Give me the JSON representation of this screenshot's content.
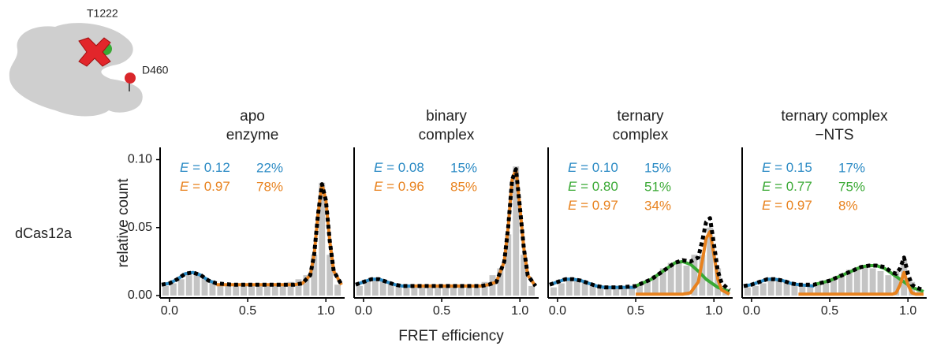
{
  "diagram": {
    "labels": [
      "T1222",
      "D460"
    ]
  },
  "row_label": "dCas12a",
  "xlabel": "FRET efficiency",
  "chart_data": [
    {
      "type": "histogram",
      "title": [
        "apo",
        "enzyme"
      ],
      "ylabel": "relative count",
      "xlim": [
        -0.06,
        1.12
      ],
      "ylim": [
        0,
        0.109
      ],
      "xticks": [
        {
          "value": 0,
          "label": "0.0"
        },
        {
          "value": 0.5,
          "label": "0.5"
        },
        {
          "value": 1,
          "label": "1.0"
        }
      ],
      "yticks": [
        {
          "value": 0,
          "label": "0.00"
        },
        {
          "value": 0.05,
          "label": "0.05"
        },
        {
          "value": 0.1,
          "label": "0.10"
        }
      ],
      "annotations": [
        {
          "text": "E = 0.12",
          "share": "22%",
          "color": "#2a8ac4"
        },
        {
          "text": "E = 0.97",
          "share": "78%",
          "color": "#e8821e"
        }
      ],
      "bar_color": "#c4c4c4",
      "bins": [
        -0.05,
        0,
        0.05,
        0.1,
        0.15,
        0.2,
        0.25,
        0.3,
        0.35,
        0.4,
        0.45,
        0.5,
        0.55,
        0.6,
        0.65,
        0.7,
        0.75,
        0.8,
        0.85,
        0.9,
        0.95,
        1.0,
        1.05,
        1.1
      ],
      "counts": [
        0.007,
        0.009,
        0.012,
        0.015,
        0.016,
        0.013,
        0.01,
        0.008,
        0.008,
        0.007,
        0.007,
        0.007,
        0.008,
        0.008,
        0.008,
        0.009,
        0.01,
        0.012,
        0.015,
        0.03,
        0.083,
        0.03,
        0.008
      ],
      "x": [
        -0.05,
        0,
        0.05,
        0.1,
        0.15,
        0.2,
        0.25,
        0.3,
        0.4,
        0.5,
        0.6,
        0.7,
        0.75,
        0.8,
        0.85,
        0.9,
        0.925,
        0.95,
        0.975,
        1.0,
        1.025,
        1.05,
        1.1
      ],
      "series": [
        {
          "color": "#2a8ac4",
          "values": [
            0.008,
            0.009,
            0.012,
            0.016,
            0.017,
            0.015,
            0.011,
            0.009,
            null,
            null,
            null,
            null,
            null,
            null,
            null,
            null,
            null,
            null,
            null,
            null,
            null,
            null,
            null
          ]
        },
        {
          "color": "#e8821e",
          "values": [
            null,
            null,
            null,
            null,
            null,
            null,
            null,
            0.008,
            0.008,
            0.008,
            0.008,
            0.008,
            0.008,
            0.008,
            0.009,
            0.015,
            0.03,
            0.06,
            0.082,
            0.07,
            0.04,
            0.018,
            0.008
          ]
        },
        {
          "color": "#000000",
          "style": "dashed",
          "values": [
            0.008,
            0.009,
            0.012,
            0.016,
            0.017,
            0.015,
            0.011,
            0.009,
            0.008,
            0.008,
            0.008,
            0.008,
            0.008,
            0.008,
            0.009,
            0.015,
            0.03,
            0.06,
            0.082,
            0.07,
            0.04,
            0.018,
            0.008
          ]
        }
      ]
    },
    {
      "type": "histogram",
      "title": [
        "binary",
        "complex"
      ],
      "xlim": [
        -0.06,
        1.12
      ],
      "ylim": [
        0,
        0.109
      ],
      "xticks": [
        {
          "value": 0,
          "label": "0.0"
        },
        {
          "value": 0.5,
          "label": "0.5"
        },
        {
          "value": 1,
          "label": "1.0"
        }
      ],
      "annotations": [
        {
          "text": "E = 0.08",
          "share": "15%",
          "color": "#2a8ac4"
        },
        {
          "text": "E = 0.96",
          "share": "85%",
          "color": "#e8821e"
        }
      ],
      "bar_color": "#c4c4c4",
      "bins": [
        -0.05,
        0,
        0.05,
        0.1,
        0.15,
        0.2,
        0.25,
        0.3,
        0.35,
        0.4,
        0.45,
        0.5,
        0.55,
        0.6,
        0.65,
        0.7,
        0.75,
        0.8,
        0.85,
        0.9,
        0.95,
        1.0,
        1.05,
        1.1
      ],
      "counts": [
        0.007,
        0.01,
        0.012,
        0.012,
        0.009,
        0.007,
        0.006,
        0.006,
        0.006,
        0.006,
        0.006,
        0.006,
        0.007,
        0.007,
        0.007,
        0.008,
        0.01,
        0.015,
        0.02,
        0.045,
        0.095,
        0.03,
        0.007
      ],
      "x": [
        -0.05,
        0,
        0.05,
        0.1,
        0.15,
        0.2,
        0.25,
        0.3,
        0.4,
        0.5,
        0.6,
        0.7,
        0.75,
        0.8,
        0.85,
        0.9,
        0.925,
        0.95,
        0.975,
        1.0,
        1.025,
        1.05,
        1.1
      ],
      "series": [
        {
          "color": "#2a8ac4",
          "values": [
            0.008,
            0.01,
            0.012,
            0.012,
            0.01,
            0.008,
            0.007,
            0.007,
            null,
            null,
            null,
            null,
            null,
            null,
            null,
            null,
            null,
            null,
            null,
            null,
            null,
            null,
            null
          ]
        },
        {
          "color": "#e8821e",
          "values": [
            null,
            null,
            null,
            null,
            null,
            null,
            null,
            0.007,
            0.007,
            0.007,
            0.007,
            0.007,
            0.007,
            0.008,
            0.01,
            0.025,
            0.05,
            0.085,
            0.093,
            0.065,
            0.035,
            0.015,
            0.007
          ]
        },
        {
          "color": "#000000",
          "style": "dashed",
          "values": [
            0.008,
            0.01,
            0.012,
            0.012,
            0.01,
            0.008,
            0.007,
            0.007,
            0.007,
            0.007,
            0.007,
            0.007,
            0.007,
            0.008,
            0.01,
            0.025,
            0.05,
            0.085,
            0.093,
            0.065,
            0.035,
            0.015,
            0.007
          ]
        }
      ]
    },
    {
      "type": "histogram",
      "title": [
        "ternary",
        "complex"
      ],
      "xlim": [
        -0.06,
        1.12
      ],
      "ylim": [
        0,
        0.109
      ],
      "xticks": [
        {
          "value": 0,
          "label": "0.0"
        },
        {
          "value": 0.5,
          "label": "0.5"
        },
        {
          "value": 1,
          "label": "1.0"
        }
      ],
      "annotations": [
        {
          "text": "E = 0.10",
          "share": "15%",
          "color": "#2a8ac4"
        },
        {
          "text": "E = 0.80",
          "share": "51%",
          "color": "#3aa935"
        },
        {
          "text": "E = 0.97",
          "share": "34%",
          "color": "#e8821e"
        }
      ],
      "bar_color": "#c4c4c4",
      "bins": [
        -0.05,
        0,
        0.05,
        0.1,
        0.15,
        0.2,
        0.25,
        0.3,
        0.35,
        0.4,
        0.45,
        0.5,
        0.55,
        0.6,
        0.65,
        0.7,
        0.75,
        0.8,
        0.85,
        0.9,
        0.95,
        1.0,
        1.05,
        1.1
      ],
      "counts": [
        0.006,
        0.009,
        0.011,
        0.012,
        0.01,
        0.008,
        0.006,
        0.005,
        0.005,
        0.005,
        0.006,
        0.008,
        0.011,
        0.015,
        0.02,
        0.024,
        0.025,
        0.022,
        0.03,
        0.03,
        0.05,
        0.02,
        0.005
      ],
      "x": [
        -0.05,
        0,
        0.05,
        0.1,
        0.15,
        0.2,
        0.25,
        0.3,
        0.4,
        0.5,
        0.6,
        0.7,
        0.75,
        0.8,
        0.85,
        0.9,
        0.925,
        0.95,
        0.975,
        1.0,
        1.025,
        1.05,
        1.1
      ],
      "series": [
        {
          "color": "#2a8ac4",
          "values": [
            0.008,
            0.01,
            0.012,
            0.012,
            0.011,
            0.009,
            0.007,
            0.006,
            0.006,
            0.006,
            null,
            null,
            null,
            null,
            null,
            null,
            null,
            null,
            null,
            null,
            null,
            null,
            null
          ]
        },
        {
          "color": "#3aa935",
          "values": [
            null,
            null,
            null,
            null,
            null,
            null,
            null,
            null,
            null,
            0.007,
            0.012,
            0.02,
            0.024,
            0.025,
            0.023,
            0.018,
            0.015,
            0.012,
            0.01,
            0.008,
            0.006,
            0.005,
            0.003
          ]
        },
        {
          "color": "#e8821e",
          "values": [
            null,
            null,
            null,
            null,
            null,
            null,
            null,
            null,
            null,
            0.001,
            0.001,
            0.001,
            0.001,
            0.001,
            0.002,
            0.01,
            0.025,
            0.042,
            0.047,
            0.03,
            0.012,
            0.004,
            0.001
          ]
        },
        {
          "color": "#000000",
          "style": "dashed",
          "values": [
            0.008,
            0.01,
            0.012,
            0.012,
            0.011,
            0.009,
            0.007,
            0.006,
            0.006,
            0.007,
            0.012,
            0.02,
            0.024,
            0.026,
            0.025,
            0.028,
            0.04,
            0.054,
            0.057,
            0.038,
            0.018,
            0.009,
            0.004
          ]
        }
      ]
    },
    {
      "type": "histogram",
      "title": [
        "ternary complex",
        "−NTS"
      ],
      "xlim": [
        -0.06,
        1.12
      ],
      "ylim": [
        0,
        0.109
      ],
      "xticks": [
        {
          "value": 0,
          "label": "0.0"
        },
        {
          "value": 0.5,
          "label": "0.5"
        },
        {
          "value": 1,
          "label": "1.0"
        }
      ],
      "annotations": [
        {
          "text": "E = 0.15",
          "share": "17%",
          "color": "#2a8ac4"
        },
        {
          "text": "E = 0.77",
          "share": "75%",
          "color": "#3aa935"
        },
        {
          "text": "E = 0.97",
          "share": "8%",
          "color": "#e8821e"
        }
      ],
      "bar_color": "#c4c4c4",
      "bins": [
        -0.05,
        0,
        0.05,
        0.1,
        0.15,
        0.2,
        0.25,
        0.3,
        0.35,
        0.4,
        0.45,
        0.5,
        0.55,
        0.6,
        0.65,
        0.7,
        0.75,
        0.8,
        0.85,
        0.9,
        0.95,
        1.0,
        1.05,
        1.1
      ],
      "counts": [
        0.006,
        0.007,
        0.009,
        0.011,
        0.012,
        0.011,
        0.009,
        0.008,
        0.008,
        0.009,
        0.011,
        0.013,
        0.016,
        0.019,
        0.021,
        0.022,
        0.02,
        0.018,
        0.015,
        0.018,
        0.026,
        0.01,
        0.004
      ],
      "x": [
        -0.05,
        0,
        0.05,
        0.1,
        0.15,
        0.2,
        0.25,
        0.3,
        0.4,
        0.5,
        0.6,
        0.7,
        0.75,
        0.8,
        0.85,
        0.9,
        0.925,
        0.95,
        0.975,
        1.0,
        1.025,
        1.05,
        1.1
      ],
      "series": [
        {
          "color": "#2a8ac4",
          "values": [
            0.007,
            0.008,
            0.01,
            0.012,
            0.012,
            0.011,
            0.009,
            0.008,
            0.007,
            null,
            null,
            null,
            null,
            null,
            null,
            null,
            null,
            null,
            null,
            null,
            null,
            null,
            null
          ]
        },
        {
          "color": "#3aa935",
          "values": [
            null,
            null,
            null,
            null,
            null,
            null,
            null,
            null,
            0.008,
            0.011,
            0.016,
            0.021,
            0.022,
            0.022,
            0.02,
            0.016,
            0.014,
            0.012,
            0.01,
            0.008,
            0.006,
            0.005,
            0.003
          ]
        },
        {
          "color": "#e8821e",
          "values": [
            null,
            null,
            null,
            null,
            null,
            null,
            null,
            0.001,
            0.001,
            0.001,
            0.001,
            0.001,
            0.001,
            0.001,
            0.001,
            0.001,
            0.002,
            0.008,
            0.017,
            0.008,
            0.002,
            0.001,
            0.001
          ]
        },
        {
          "color": "#000000",
          "style": "dashed",
          "values": [
            0.007,
            0.008,
            0.01,
            0.012,
            0.012,
            0.011,
            0.009,
            0.008,
            0.008,
            0.011,
            0.016,
            0.021,
            0.022,
            0.022,
            0.021,
            0.017,
            0.016,
            0.02,
            0.028,
            0.016,
            0.008,
            0.006,
            0.004
          ]
        }
      ]
    }
  ]
}
